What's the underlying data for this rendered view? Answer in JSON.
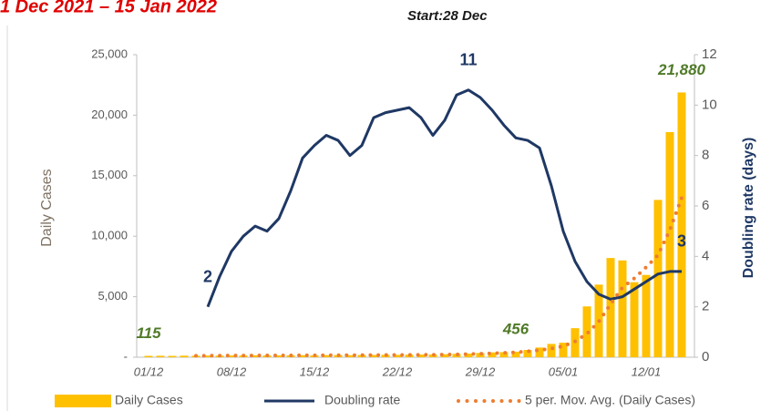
{
  "chart_data": {
    "type": "bar-line",
    "title": "1 Dec 2021 – 15 Jan 2022",
    "subtitle": "Start:28 Dec",
    "y_label": "Daily Cases",
    "y2_label": "Doubling rate (days)",
    "categories": [
      "01/12",
      null,
      null,
      null,
      null,
      null,
      null,
      "08/12",
      null,
      null,
      null,
      null,
      null,
      null,
      "15/12",
      null,
      null,
      null,
      null,
      null,
      null,
      "22/12",
      null,
      null,
      null,
      null,
      null,
      null,
      "29/12",
      null,
      null,
      null,
      null,
      null,
      null,
      "05/01",
      null,
      null,
      null,
      null,
      null,
      null,
      "12/01",
      null,
      null,
      null
    ],
    "ylim": [
      0,
      25000
    ],
    "yticks": [
      {
        "value": 0,
        "label": "-"
      },
      {
        "value": 5000,
        "label": "5,000"
      },
      {
        "value": 10000,
        "label": "10,000"
      },
      {
        "value": 15000,
        "label": "15,000"
      },
      {
        "value": 20000,
        "label": "20,000"
      },
      {
        "value": 25000,
        "label": "25,000"
      }
    ],
    "y2lim": [
      0,
      12
    ],
    "y2ticks": [
      0,
      2,
      4,
      6,
      8,
      10,
      12
    ],
    "series": [
      {
        "name": "Daily Cases",
        "kind": "bar",
        "color": "#ffc000",
        "values": [
          115,
          120,
          110,
          130,
          125,
          140,
          135,
          150,
          145,
          160,
          150,
          155,
          165,
          170,
          160,
          175,
          180,
          170,
          185,
          190,
          200,
          195,
          210,
          220,
          230,
          250,
          280,
          300,
          350,
          400,
          420,
          456,
          600,
          800,
          1100,
          1200,
          2400,
          4200,
          6000,
          8200,
          8000,
          6200,
          6800,
          13000,
          18600,
          21880
        ],
        "value_labels": [
          "115",
          null,
          null,
          null,
          null,
          null,
          null,
          null,
          null,
          null,
          null,
          null,
          null,
          null,
          null,
          null,
          null,
          null,
          null,
          null,
          null,
          null,
          null,
          null,
          null,
          null,
          null,
          null,
          null,
          null,
          null,
          "456",
          null,
          null,
          null,
          null,
          null,
          null,
          null,
          null,
          null,
          null,
          null,
          null,
          null,
          "21,880"
        ]
      },
      {
        "name": "Doubling rate",
        "kind": "line",
        "axis": "y2",
        "color": "#1f3864",
        "values": [
          null,
          null,
          null,
          null,
          null,
          2,
          3.2,
          4.2,
          4.8,
          5.2,
          5.0,
          5.5,
          6.6,
          7.9,
          8.4,
          8.8,
          8.6,
          8.0,
          8.4,
          9.5,
          9.7,
          9.8,
          9.9,
          9.5,
          8.8,
          9.4,
          10.4,
          10.6,
          10.3,
          9.8,
          9.2,
          8.7,
          8.6,
          8.3,
          6.8,
          5.0,
          3.8,
          3.0,
          2.5,
          2.3,
          2.4,
          2.7,
          3.0,
          3.3,
          3.4,
          3.4
        ],
        "value_labels": [
          null,
          null,
          null,
          null,
          null,
          "2",
          null,
          null,
          null,
          null,
          null,
          null,
          null,
          null,
          null,
          null,
          null,
          null,
          null,
          null,
          null,
          null,
          null,
          null,
          null,
          null,
          null,
          "11",
          null,
          null,
          null,
          null,
          null,
          null,
          null,
          null,
          null,
          null,
          null,
          null,
          null,
          null,
          null,
          null,
          null,
          "3"
        ]
      },
      {
        "name": "5 per. Mov. Avg. (Daily Cases)",
        "kind": "dots",
        "color": "#ed7d31",
        "values": [
          null,
          null,
          null,
          null,
          120,
          128,
          132,
          140,
          141,
          148,
          152,
          152,
          155,
          160,
          164,
          165,
          170,
          172,
          174,
          180,
          185,
          188,
          196,
          203,
          209,
          221,
          238,
          258,
          286,
          320,
          360,
          405,
          486,
          586,
          716,
          911,
          1305,
          1940,
          2940,
          4400,
          5760,
          6520,
          7440,
          8440,
          10520,
          13176
        ]
      }
    ]
  }
}
